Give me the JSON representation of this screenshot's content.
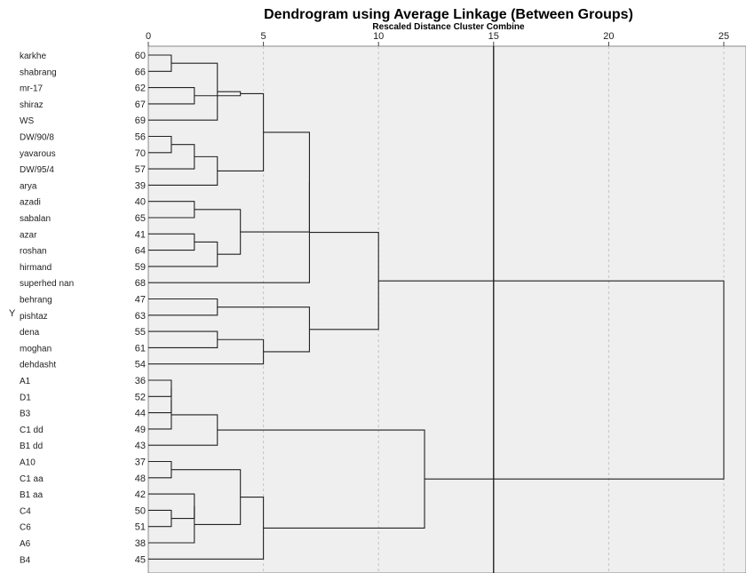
{
  "chart_data": {
    "type": "dendrogram",
    "title": "Dendrogram using Average Linkage (Between Groups)",
    "subtitle": "Rescaled Distance Cluster Combine",
    "ylabel": "Y",
    "xlim": [
      0,
      25
    ],
    "xticks": [
      0,
      5,
      10,
      15,
      20,
      25
    ],
    "grid": true,
    "leaves": [
      {
        "label": "karkhe",
        "num": "60"
      },
      {
        "label": "shabrang",
        "num": "66"
      },
      {
        "label": "mr-17",
        "num": "62"
      },
      {
        "label": "shiraz",
        "num": "67"
      },
      {
        "label": "WS",
        "num": "69"
      },
      {
        "label": "DW/90/8",
        "num": "56"
      },
      {
        "label": "yavarous",
        "num": "70"
      },
      {
        "label": "DW/95/4",
        "num": "57"
      },
      {
        "label": "arya",
        "num": "39"
      },
      {
        "label": "azadi",
        "num": "40"
      },
      {
        "label": "sabalan",
        "num": "65"
      },
      {
        "label": "azar",
        "num": "41"
      },
      {
        "label": "roshan",
        "num": "64"
      },
      {
        "label": "hirmand",
        "num": "59"
      },
      {
        "label": "superhed nan",
        "num": "68"
      },
      {
        "label": "behrang",
        "num": "47"
      },
      {
        "label": "pishtaz",
        "num": "63"
      },
      {
        "label": "dena",
        "num": "55"
      },
      {
        "label": "moghan",
        "num": "61"
      },
      {
        "label": "dehdasht",
        "num": "54"
      },
      {
        "label": "A1",
        "num": "36"
      },
      {
        "label": "D1",
        "num": "52"
      },
      {
        "label": "B3",
        "num": "44"
      },
      {
        "label": "C1 dd",
        "num": "49"
      },
      {
        "label": "B1 dd",
        "num": "43"
      },
      {
        "label": "A10",
        "num": "37"
      },
      {
        "label": "C1 aa",
        "num": "48"
      },
      {
        "label": "B1 aa",
        "num": "42"
      },
      {
        "label": "C4",
        "num": "50"
      },
      {
        "label": "C6",
        "num": "51"
      },
      {
        "label": "A6",
        "num": "38"
      },
      {
        "label": "B4",
        "num": "45"
      }
    ],
    "merges": [
      [
        0,
        1,
        1.0
      ],
      [
        2,
        3,
        2.0
      ],
      [
        32,
        4,
        3.0
      ],
      [
        33,
        34,
        4.0
      ],
      [
        5,
        6,
        1.0
      ],
      [
        36,
        7,
        2.0
      ],
      [
        37,
        8,
        3.0
      ],
      [
        35,
        38,
        5.0
      ],
      [
        9,
        10,
        2.0
      ],
      [
        11,
        12,
        2.0
      ],
      [
        41,
        13,
        3.0
      ],
      [
        40,
        42,
        4.0
      ],
      [
        39,
        43,
        7.0
      ],
      [
        44,
        14,
        7.0
      ],
      [
        15,
        16,
        3.0
      ],
      [
        17,
        18,
        3.0
      ],
      [
        47,
        19,
        5.0
      ],
      [
        46,
        48,
        7.0
      ],
      [
        45,
        49,
        10.0
      ],
      [
        20,
        21,
        1.0
      ],
      [
        51,
        22,
        1.0
      ],
      [
        52,
        23,
        1.0
      ],
      [
        53,
        24,
        3.0
      ],
      [
        25,
        26,
        1.0
      ],
      [
        28,
        29,
        1.0
      ],
      [
        27,
        56,
        2.0
      ],
      [
        57,
        30,
        2.0
      ],
      [
        55,
        58,
        4.0
      ],
      [
        59,
        31,
        5.0
      ],
      [
        54,
        60,
        12.0
      ],
      [
        50,
        61,
        25.0
      ]
    ],
    "reference_line": 15
  }
}
